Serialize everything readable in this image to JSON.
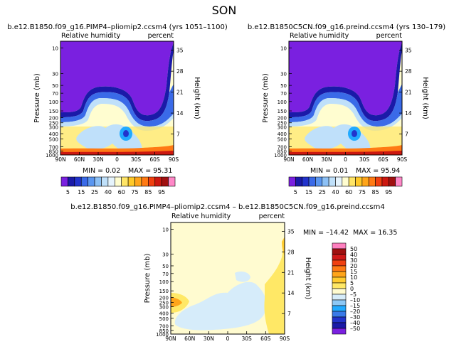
{
  "season": "SON",
  "panels": [
    {
      "title": "b.e12.B1850.f09_g16.PIMP4–pliomip2.ccsm4 (yrs 1051–1100)",
      "left_label": "Relative humidity",
      "right_label": "percent",
      "min_text": "MIN =   0.02",
      "max_text": "MAX =  95.31"
    },
    {
      "title": "b.e12.B1850C5CN.f09_g16.preind.ccsm4 (yrs 130–179)",
      "left_label": "Relative humidity",
      "right_label": "percent",
      "min_text": "MIN =   0.01",
      "max_text": "MAX =  95.94"
    },
    {
      "title": "b.e12.B1850.f09_g16.PIMP4–pliomip2.ccsm4 – b.e12.B1850C5CN.f09_g16.preind.ccsm4",
      "left_label": "Relative humidity",
      "right_label": "percent",
      "min_text": "MIN = –14.42",
      "max_text": "MAX =  16.35"
    }
  ],
  "axis": {
    "ylabel_left": "Pressure (mb)",
    "ylabel_right": "Height (km)",
    "pressure_ticks": [
      "10",
      "30",
      "50",
      "70",
      "100",
      "150",
      "200",
      "250",
      "300",
      "400",
      "500",
      "700",
      "850",
      "1000"
    ],
    "pressure_major": [
      "10",
      "30",
      "50",
      "70",
      "100",
      "150",
      "200",
      "250",
      "300",
      "400",
      "500",
      "700",
      "850",
      "1000"
    ],
    "height_ticks": [
      "35",
      "28",
      "21",
      "14",
      "7"
    ],
    "lat_ticks": [
      "90N",
      "60N",
      "30N",
      "0",
      "30S",
      "60S",
      "90S"
    ]
  },
  "legend_main": {
    "labels": [
      "5",
      "15",
      "25",
      "40",
      "60",
      "75",
      "85",
      "95"
    ],
    "colors": [
      "#7a20e0",
      "#1a1aa8",
      "#2233cc",
      "#3a6ae8",
      "#5a96f0",
      "#8cc0f5",
      "#bfe0fa",
      "#e6f4fd",
      "#fffdd0",
      "#ffe566",
      "#ffc928",
      "#ffa51a",
      "#ff7a14",
      "#f04010",
      "#cc1810",
      "#a01010",
      "#ff88c8"
    ]
  },
  "legend_diff": {
    "labels": [
      "50",
      "40",
      "30",
      "20",
      "15",
      "10",
      "5",
      "0",
      "–5",
      "–10",
      "–15",
      "–20",
      "–30",
      "–40",
      "–50"
    ],
    "colors": [
      "#ff80c0",
      "#a01010",
      "#d01818",
      "#f04010",
      "#ff7a14",
      "#ffa51a",
      "#ffcc30",
      "#ffe866",
      "#fffbd0",
      "#d6ecfa",
      "#8cc8f5",
      "#22aaff",
      "#3a7ae8",
      "#2233cc",
      "#1a1aa8",
      "#7a20e0"
    ]
  },
  "chart_data": [
    {
      "type": "heatmap",
      "title": "b.e12.B1850.f09_g16.PIMP4–pliomip2.ccsm4 (yrs 1051–1100)",
      "variable": "Relative humidity",
      "units": "percent",
      "x": [
        "90N",
        "60N",
        "30N",
        "0",
        "30S",
        "60S",
        "90S"
      ],
      "y": [
        10,
        30,
        50,
        70,
        100,
        150,
        200,
        250,
        300,
        400,
        500,
        700,
        850,
        1000
      ],
      "min": 0.02,
      "max": 95.31,
      "xlabel": "",
      "ylabel": "Pressure (mb)",
      "y2label": "Height (km)"
    },
    {
      "type": "heatmap",
      "title": "b.e12.B1850C5CN.f09_g16.preind.ccsm4 (yrs 130–179)",
      "variable": "Relative humidity",
      "units": "percent",
      "x": [
        "90N",
        "60N",
        "30N",
        "0",
        "30S",
        "60S",
        "90S"
      ],
      "y": [
        10,
        30,
        50,
        70,
        100,
        150,
        200,
        250,
        300,
        400,
        500,
        700,
        850,
        1000
      ],
      "min": 0.01,
      "max": 95.94,
      "xlabel": "",
      "ylabel": "Pressure (mb)",
      "y2label": "Height (km)"
    },
    {
      "type": "heatmap",
      "title": "b.e12.B1850.f09_g16.PIMP4–pliomip2.ccsm4 – b.e12.B1850C5CN.f09_g16.preind.ccsm4",
      "variable": "Relative humidity",
      "units": "percent",
      "x": [
        "90N",
        "60N",
        "30N",
        "0",
        "30S",
        "60S",
        "90S"
      ],
      "y": [
        10,
        30,
        50,
        70,
        100,
        150,
        200,
        250,
        300,
        400,
        500,
        700,
        850,
        1000
      ],
      "min": -14.42,
      "max": 16.35,
      "xlabel": "",
      "ylabel": "Pressure (mb)",
      "y2label": "Height (km)"
    }
  ]
}
